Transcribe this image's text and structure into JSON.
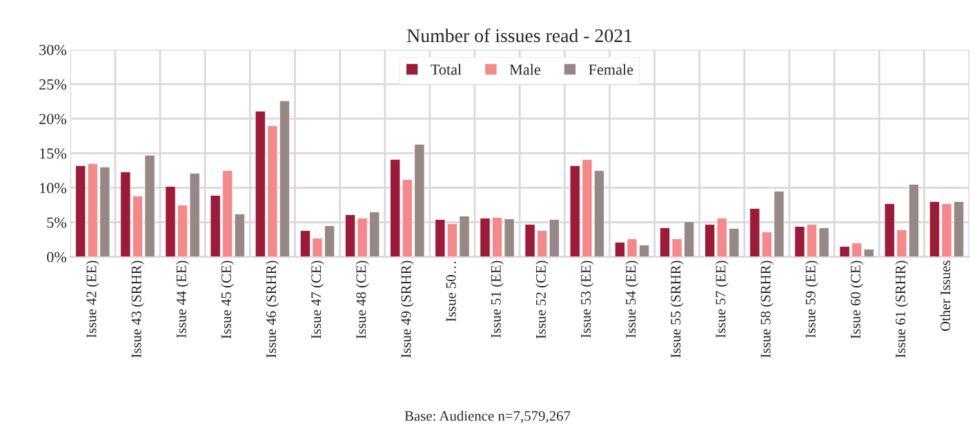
{
  "chart_data": {
    "type": "bar",
    "title": "Number of issues read - 2021",
    "categories": [
      "Issue 42 (EE)",
      "Issue 43 (SRHR)",
      "Issue 44 (EE)",
      "Issue 45 (CE)",
      "Issue 46 (SRHR)",
      "Issue 47 (CE)",
      "Issue 48 (CE)",
      "Issue 49 (SRHR)",
      "Issue 50…",
      "Issue 51 (EE)",
      "Issue 52 (CE)",
      "Issue 53 (EE)",
      "Issue 54 (EE)",
      "Issue 55 (SRHR)",
      "Issue 57 (EE)",
      "Issue 58 (SRHR)",
      "Issue 59 (EE)",
      "Issue 60 (CE)",
      "Issue 61 (SRHR)",
      "Other Issues"
    ],
    "series": [
      {
        "name": "Total",
        "color": "#9b1b38",
        "values": [
          13.2,
          12.3,
          10.2,
          8.9,
          21.1,
          3.8,
          6.1,
          14.1,
          5.4,
          5.6,
          4.7,
          13.2,
          2.1,
          4.2,
          4.7,
          7.0,
          4.4,
          1.5,
          7.7,
          8.0
        ]
      },
      {
        "name": "Male",
        "color": "#f4898b",
        "values": [
          13.5,
          8.8,
          7.5,
          12.5,
          19.0,
          2.7,
          5.6,
          11.2,
          4.8,
          5.7,
          3.8,
          14.1,
          2.6,
          2.6,
          5.6,
          3.6,
          4.7,
          2.0,
          3.9,
          7.7
        ]
      },
      {
        "name": "Female",
        "color": "#978888",
        "values": [
          13.0,
          14.7,
          12.1,
          6.2,
          22.6,
          4.5,
          6.5,
          16.3,
          5.9,
          5.5,
          5.4,
          12.5,
          1.7,
          5.1,
          4.1,
          9.5,
          4.2,
          1.1,
          10.5,
          8.0
        ]
      }
    ],
    "ylim": [
      0,
      30
    ],
    "yticks": [
      {
        "value": 0,
        "label": "0%"
      },
      {
        "value": 5,
        "label": "5%"
      },
      {
        "value": 10,
        "label": "10%"
      },
      {
        "value": 15,
        "label": "15%"
      },
      {
        "value": 20,
        "label": "20%"
      },
      {
        "value": 25,
        "label": "25%"
      },
      {
        "value": 30,
        "label": "30%"
      }
    ],
    "grid": true,
    "legend": "top",
    "annotations": [
      "Base: Audience n=7,579,267"
    ]
  }
}
